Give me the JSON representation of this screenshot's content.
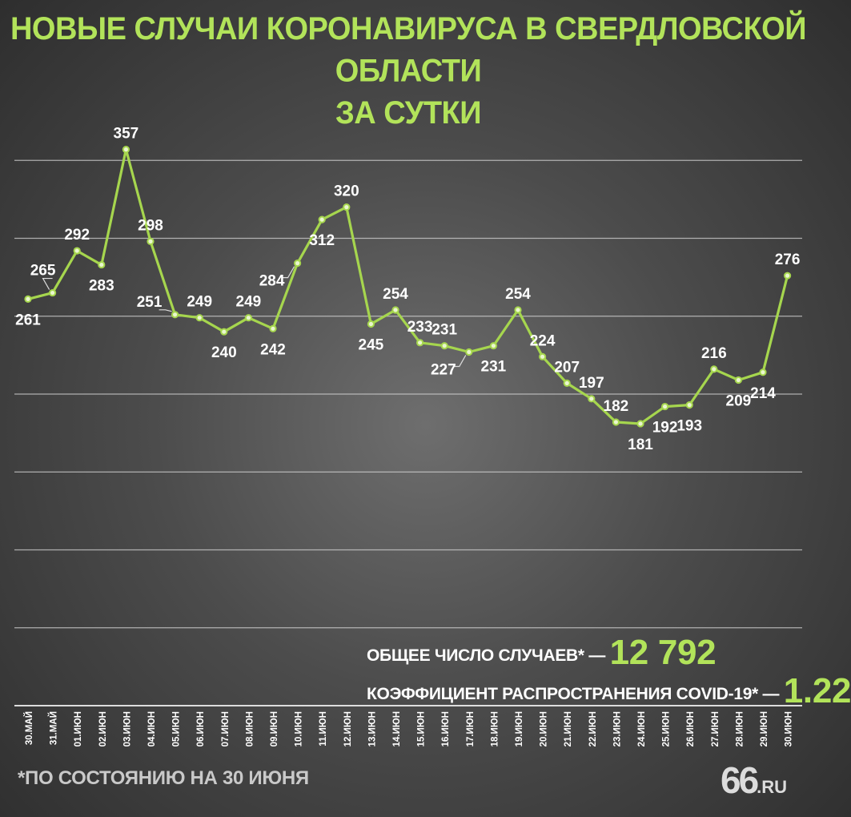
{
  "header": {
    "title_line1": "НОВЫЕ СЛУЧАИ КОРОНАВИРУСА В СВЕРДЛОВСКОЙ ОБЛАСТИ",
    "title_line2": "ЗА СУТКИ"
  },
  "chart_data": {
    "type": "line",
    "title": "НОВЫЕ СЛУЧАИ КОРОНАВИРУСА В СВЕРДЛОВСКОЙ ОБЛАСТИ ЗА СУТКИ",
    "categories": [
      "30.МАЙ",
      "31.МАЙ",
      "01.ИЮН",
      "02.ИЮН",
      "03.ИЮН",
      "04.ИЮН",
      "05.ИЮН",
      "06.ИЮН",
      "07.ИЮН",
      "08.ИЮН",
      "09.ИЮН",
      "10.ИЮН",
      "11.ИЮН",
      "12.ИЮН",
      "13.ИЮН",
      "14.ИЮН",
      "15.ИЮН",
      "16.ИЮН",
      "17.ИЮН",
      "18.ИЮН",
      "19.ИЮН",
      "20.ИЮН",
      "21.ИЮН",
      "22.ИЮН",
      "23.ИЮН",
      "24.ИЮН",
      "25.ИЮН",
      "26.ИЮН",
      "27.ИЮН",
      "28.ИЮН",
      "29.ИЮН",
      "30.ИЮН"
    ],
    "values": [
      261,
      265,
      292,
      283,
      357,
      298,
      251,
      249,
      240,
      249,
      242,
      284,
      312,
      320,
      245,
      254,
      233,
      231,
      227,
      231,
      254,
      224,
      207,
      197,
      182,
      181,
      192,
      193,
      216,
      209,
      214,
      276
    ],
    "ylim": [
      0,
      400
    ],
    "gridlines": [
      0,
      50,
      100,
      150,
      200,
      250,
      300,
      350
    ],
    "grid": true,
    "legend": "none",
    "line_color": "#a6d64e",
    "label_color": "#ffffff",
    "leader_lines": [
      "31.МАЙ",
      "05.ИЮН",
      "10.ИЮН",
      "17.ИЮН"
    ]
  },
  "totals": {
    "total_label": "ОБЩЕЕ ЧИСЛО СЛУЧАЕВ* —",
    "total_value": "12 792",
    "rate_label": "КОЭФФИЦИЕНТ РАСПРОСТРАНЕНИЯ COVID-19* —",
    "rate_value": "1.22"
  },
  "footer": {
    "footnote": "*ПО СОСТОЯНИЮ НА 30 ИЮНЯ",
    "logo_number": "66",
    "logo_domain": ".RU"
  },
  "colors": {
    "accent": "#b2e35a",
    "text": "#ffffff",
    "background": "#4c4c4c"
  }
}
